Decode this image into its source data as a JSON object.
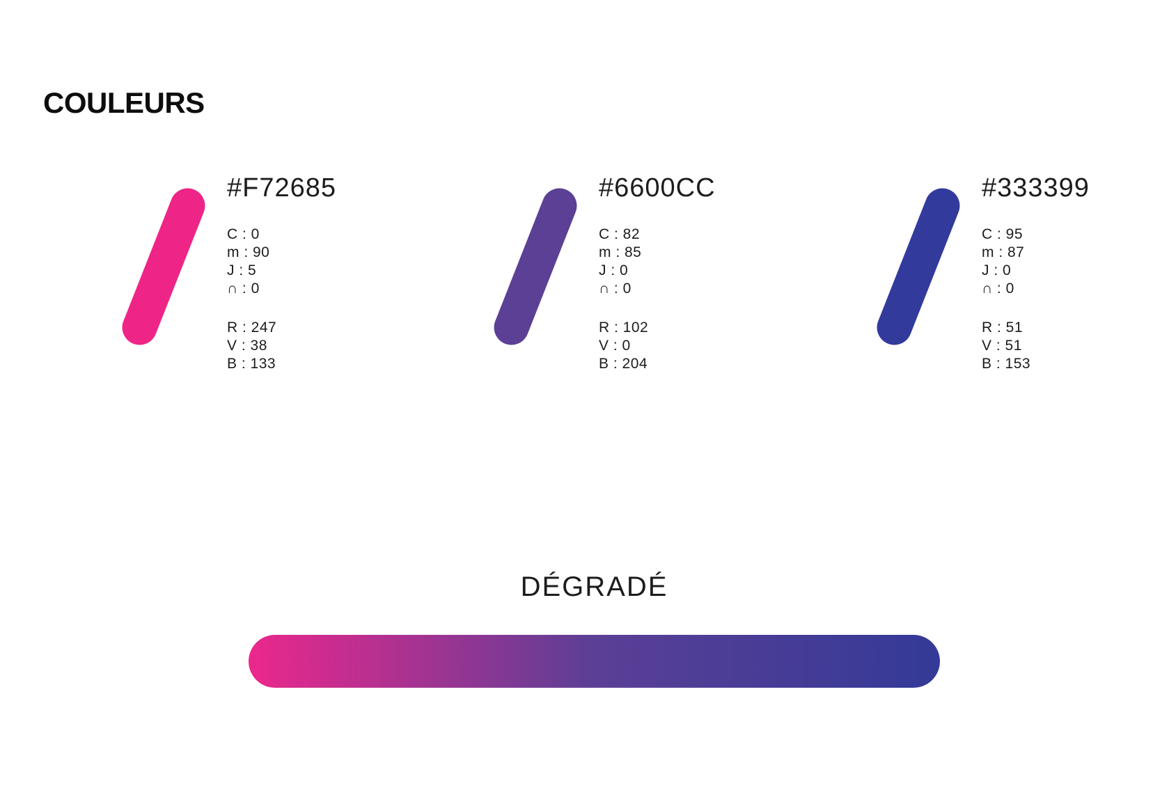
{
  "page": {
    "title": "COULEURS"
  },
  "colors": [
    {
      "hex": "#F72685",
      "swatch_fill": "#EE2586",
      "cmyk_lines": [
        "C : 0",
        "m : 90",
        "J : 5",
        "∩ : 0"
      ],
      "rgb_lines": [
        "R : 247",
        "V : 38",
        "B : 133"
      ]
    },
    {
      "hex": "#6600CC",
      "swatch_fill": "#5B4095",
      "cmyk_lines": [
        "C : 82",
        "m : 85",
        "J : 0",
        "∩ : 0"
      ],
      "rgb_lines": [
        "R : 102",
        "V : 0",
        "B : 204"
      ]
    },
    {
      "hex": "#333399",
      "swatch_fill": "#323A9B",
      "cmyk_lines": [
        "C : 95",
        "m : 87",
        "J : 0",
        "∩ : 0"
      ],
      "rgb_lines": [
        "R : 51",
        "V : 51",
        "B : 153"
      ]
    }
  ],
  "gradient": {
    "label": "DÉGRADÉ",
    "stops": [
      "#EC278C",
      "#5B3F96",
      "#343A97"
    ]
  }
}
